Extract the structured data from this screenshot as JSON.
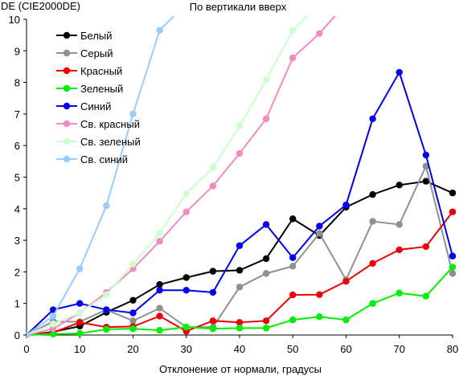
{
  "chart_data": {
    "type": "line",
    "title": "По вертикали вверх",
    "ylabel": "DE (CIE2000DE)",
    "xlabel": "Отклонение от нормали, градусы",
    "xlim": [
      0,
      80
    ],
    "ylim": [
      0,
      10
    ],
    "xticks": [
      0,
      10,
      20,
      30,
      40,
      50,
      60,
      70,
      80
    ],
    "yticks": [
      0,
      1,
      2,
      3,
      4,
      5,
      6,
      7,
      8,
      9,
      10
    ],
    "grid": false,
    "legend_position": "top-left",
    "x": [
      0,
      5,
      10,
      15,
      20,
      25,
      30,
      35,
      40,
      45,
      50,
      55,
      60,
      65,
      70,
      75,
      80
    ],
    "series": [
      {
        "name": "Белый",
        "color": "#000000",
        "values": [
          0,
          0.1,
          0.28,
          0.72,
          1.1,
          1.6,
          1.82,
          2.02,
          2.05,
          2.42,
          3.68,
          3.15,
          4.05,
          4.45,
          4.75,
          4.87,
          4.5
        ]
      },
      {
        "name": "Серый",
        "color": "#909090",
        "values": [
          0,
          0.43,
          0.42,
          0.8,
          0.45,
          0.85,
          0.25,
          0.25,
          1.52,
          1.95,
          2.18,
          3.22,
          1.75,
          3.6,
          3.5,
          5.35,
          1.95
        ]
      },
      {
        "name": "Красный",
        "color": "#ee0000",
        "values": [
          0,
          0.08,
          0.4,
          0.25,
          0.27,
          0.6,
          0.12,
          0.45,
          0.4,
          0.45,
          1.27,
          1.28,
          1.7,
          2.27,
          2.7,
          2.8,
          3.9
        ]
      },
      {
        "name": "Зеленый",
        "color": "#00ee00",
        "values": [
          0,
          0.03,
          0.05,
          0.18,
          0.2,
          0.15,
          0.25,
          0.2,
          0.22,
          0.22,
          0.48,
          0.58,
          0.48,
          1.0,
          1.33,
          1.23,
          2.15
        ]
      },
      {
        "name": "Синий",
        "color": "#0000ee",
        "values": [
          0,
          0.8,
          1.0,
          0.8,
          0.7,
          1.42,
          1.42,
          1.35,
          2.83,
          3.5,
          2.45,
          3.45,
          4.12,
          6.85,
          8.32,
          5.7,
          2.5
        ]
      },
      {
        "name": "Св. красный",
        "color": "#f08cc0",
        "values": [
          0,
          0.2,
          0.7,
          1.35,
          2.1,
          2.97,
          3.9,
          4.72,
          5.75,
          6.85,
          8.78,
          9.55,
          10.5,
          null,
          null,
          null,
          null
        ]
      },
      {
        "name": "Св. зеленый",
        "color": "#ccffcc",
        "values": [
          0,
          0.35,
          0.7,
          1.28,
          2.25,
          3.22,
          4.48,
          5.3,
          6.62,
          8.08,
          9.65,
          10.5,
          null,
          null,
          null,
          null,
          null
        ]
      },
      {
        "name": "Св. синий",
        "color": "#99ccff",
        "values": [
          0,
          0.6,
          2.1,
          4.1,
          7.0,
          9.65,
          10.5,
          null,
          null,
          null,
          null,
          null,
          null,
          null,
          null,
          null,
          null
        ]
      }
    ]
  }
}
